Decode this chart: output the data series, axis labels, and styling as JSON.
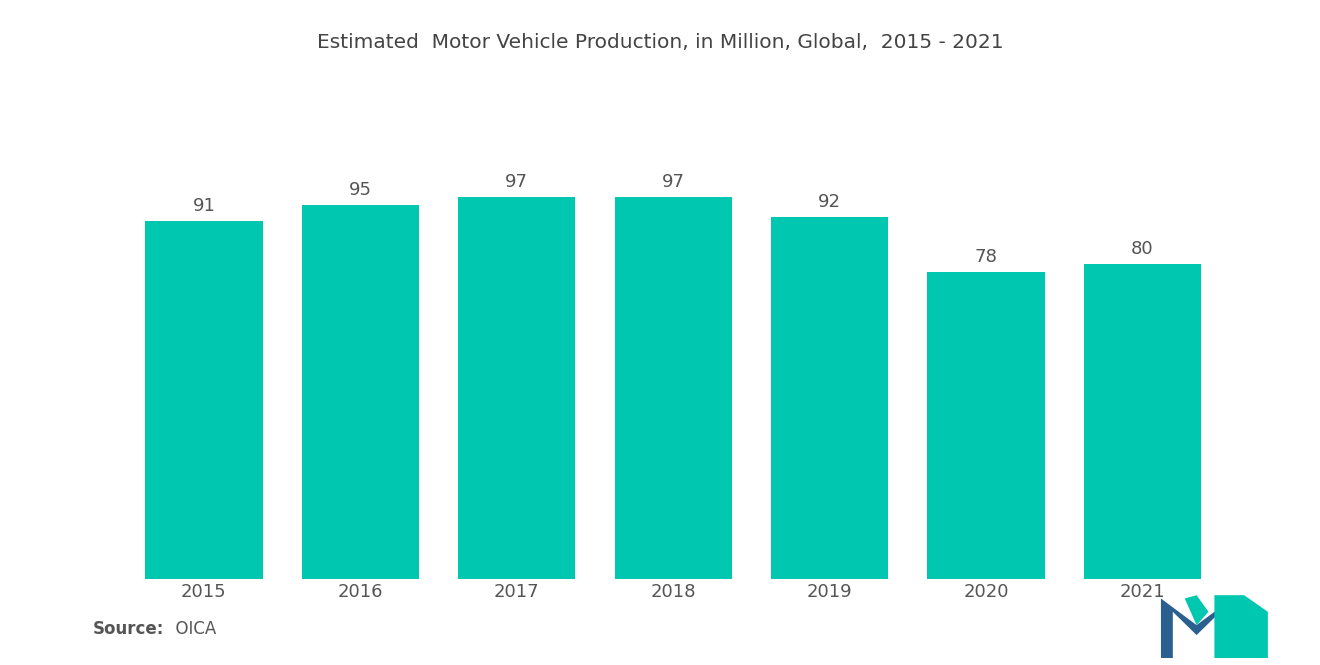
{
  "title": "Estimated  Motor Vehicle Production, in Million, Global,  2015 - 2021",
  "categories": [
    "2015",
    "2016",
    "2017",
    "2018",
    "2019",
    "2020",
    "2021"
  ],
  "values": [
    91,
    95,
    97,
    97,
    92,
    78,
    80
  ],
  "bar_color": "#00C8B0",
  "background_color": "#FFFFFF",
  "source_bold": "Source:",
  "source_normal": "  OICA",
  "title_fontsize": 14.5,
  "label_fontsize": 13,
  "source_fontsize": 12,
  "ylim": [
    0,
    115
  ],
  "bar_width": 0.75
}
